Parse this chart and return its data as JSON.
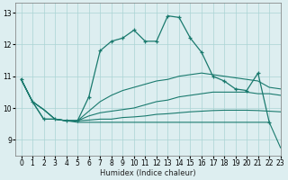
{
  "xlabel": "Humidex (Indice chaleur)",
  "bg_color": "#ddeef0",
  "line_color": "#1a7a6e",
  "grid_color": "#aad4d4",
  "xlim": [
    -0.5,
    23
  ],
  "ylim": [
    8.5,
    13.3
  ],
  "yticks": [
    9,
    10,
    11,
    12,
    13
  ],
  "xticks": [
    0,
    1,
    2,
    3,
    4,
    5,
    6,
    7,
    8,
    9,
    10,
    11,
    12,
    13,
    14,
    15,
    16,
    17,
    18,
    19,
    20,
    21,
    22,
    23
  ],
  "series": [
    {
      "x": [
        0,
        1,
        2,
        3,
        4,
        5,
        6,
        7,
        8,
        9,
        10,
        11,
        12,
        13,
        14,
        15,
        16,
        17,
        18,
        19,
        20,
        21,
        22
      ],
      "y": [
        10.9,
        10.2,
        9.65,
        9.65,
        9.6,
        9.6,
        10.35,
        11.8,
        12.1,
        12.2,
        12.45,
        12.1,
        12.1,
        12.9,
        12.85,
        12.2,
        11.75,
        11.0,
        10.85,
        10.6,
        10.55,
        11.1,
        9.55
      ],
      "marker": true
    },
    {
      "x": [
        0,
        1,
        2,
        3,
        4,
        5,
        6,
        7,
        8,
        9,
        10,
        11,
        12,
        13,
        14,
        15,
        16,
        17,
        18,
        19,
        20,
        21,
        22,
        23
      ],
      "y": [
        10.9,
        10.2,
        9.95,
        9.65,
        9.6,
        9.6,
        9.9,
        10.2,
        10.4,
        10.55,
        10.65,
        10.75,
        10.85,
        10.9,
        11.0,
        11.05,
        11.1,
        11.05,
        11.0,
        10.95,
        10.9,
        10.85,
        10.65,
        10.6
      ],
      "marker": false
    },
    {
      "x": [
        0,
        1,
        2,
        3,
        4,
        5,
        6,
        7,
        8,
        9,
        10,
        11,
        12,
        13,
        14,
        15,
        16,
        17,
        18,
        19,
        20,
        21,
        22,
        23
      ],
      "y": [
        10.9,
        10.2,
        9.95,
        9.65,
        9.6,
        9.6,
        9.75,
        9.85,
        9.9,
        9.95,
        10.0,
        10.1,
        10.2,
        10.25,
        10.35,
        10.4,
        10.45,
        10.5,
        10.5,
        10.5,
        10.5,
        10.45,
        10.45,
        10.4
      ],
      "marker": false
    },
    {
      "x": [
        0,
        1,
        2,
        3,
        4,
        5,
        6,
        7,
        8,
        9,
        10,
        11,
        12,
        13,
        14,
        15,
        16,
        17,
        18,
        19,
        20,
        21,
        22,
        23
      ],
      "y": [
        10.9,
        10.2,
        9.95,
        9.65,
        9.6,
        9.6,
        9.62,
        9.65,
        9.65,
        9.7,
        9.72,
        9.75,
        9.8,
        9.82,
        9.85,
        9.88,
        9.9,
        9.92,
        9.93,
        9.93,
        9.93,
        9.92,
        9.9,
        9.88
      ],
      "marker": false
    },
    {
      "x": [
        0,
        1,
        2,
        3,
        4,
        5,
        22,
        23
      ],
      "y": [
        10.9,
        10.2,
        9.65,
        9.65,
        9.6,
        9.55,
        9.55,
        8.75
      ],
      "marker": false
    }
  ]
}
